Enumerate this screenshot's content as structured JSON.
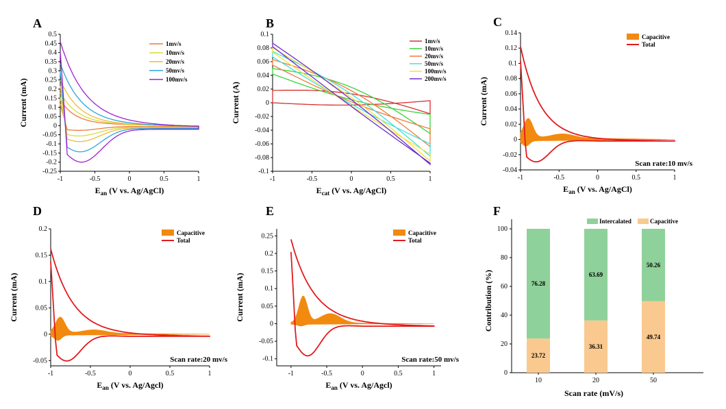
{
  "chart_data": [
    {
      "panel": "A",
      "type": "line",
      "title": "",
      "xlabel_main": "E",
      "xlabel_sub": "an",
      "xlabel_rest": " (V vs. Ag/AgCl)",
      "ylabel": "Current (mA)",
      "xlim": [
        -1,
        1
      ],
      "ylim": [
        -0.25,
        0.5
      ],
      "xticks": [
        -1,
        -0.5,
        0,
        0.5,
        1
      ],
      "yticks": [
        -0.25,
        -0.2,
        -0.15,
        -0.1,
        -0.05,
        0,
        0.05,
        0.1,
        0.15,
        0.2,
        0.25,
        0.3,
        0.35,
        0.4,
        0.45,
        0.5
      ],
      "legend_position": "top-right",
      "series": [
        {
          "name": "1mv/s",
          "color": "#ef7a3b",
          "start": 0.13,
          "upperDecay": 0.12,
          "lowerMin": -0.025,
          "lowerMinX": -0.75,
          "end": -0.005
        },
        {
          "name": "10mv/s",
          "color": "#d8dc3a",
          "start": 0.17,
          "upperDecay": 0.14,
          "lowerMin": -0.055,
          "lowerMinX": -0.74,
          "end": -0.008
        },
        {
          "name": "20mv/s",
          "color": "#f0b93a",
          "start": 0.24,
          "upperDecay": 0.15,
          "lowerMin": -0.085,
          "lowerMinX": -0.73,
          "end": -0.011
        },
        {
          "name": "50mv/s",
          "color": "#2aa5e0",
          "start": 0.33,
          "upperDecay": 0.17,
          "lowerMin": -0.14,
          "lowerMinX": -0.72,
          "end": -0.015
        },
        {
          "name": "100mv/s",
          "color": "#a020d0",
          "start": 0.45,
          "upperDecay": 0.2,
          "lowerMin": -0.195,
          "lowerMinX": -0.7,
          "end": -0.02
        }
      ]
    },
    {
      "panel": "B",
      "type": "line",
      "xlabel_main": "E",
      "xlabel_sub": "cat",
      "xlabel_rest": " (V vs. Ag/AgCl)",
      "ylabel": "Current (A)",
      "xlim": [
        -1,
        1
      ],
      "ylim": [
        -0.1,
        0.1
      ],
      "xticks": [
        -1,
        -0.5,
        0,
        0.5,
        1
      ],
      "yticks": [
        -0.1,
        -0.08,
        -0.06,
        -0.04,
        -0.02,
        0,
        0.02,
        0.04,
        0.06,
        0.08,
        0.1
      ],
      "legend_position": "top-right",
      "series": [
        {
          "name": "1mv/s",
          "color": "#d93030",
          "upStart": 0.018,
          "upEnd": -0.016,
          "loStart": 0.0,
          "loEnd": 0.003,
          "bulge": 0.012
        },
        {
          "name": "10mv/s",
          "color": "#3cd23c",
          "upStart": 0.05,
          "upEnd": -0.045,
          "loStart": 0.042,
          "loEnd": -0.017,
          "bulge": 0.02
        },
        {
          "name": "20mv/s",
          "color": "#ef7a3b",
          "upStart": 0.063,
          "upEnd": -0.064,
          "loStart": 0.055,
          "loEnd": -0.038,
          "bulge": 0.018
        },
        {
          "name": "50mv/s",
          "color": "#40e0e0",
          "upStart": 0.075,
          "upEnd": -0.078,
          "loStart": 0.067,
          "loEnd": -0.06,
          "bulge": 0.014
        },
        {
          "name": "100mv/s",
          "color": "#f0e040",
          "upStart": 0.08,
          "upEnd": -0.085,
          "loStart": 0.074,
          "loEnd": -0.075,
          "bulge": 0.01
        },
        {
          "name": "200mv/s",
          "color": "#6a2bd0",
          "upStart": 0.087,
          "upEnd": -0.09,
          "loStart": 0.082,
          "loEnd": -0.088,
          "bulge": 0.006
        }
      ]
    },
    {
      "panel": "C",
      "type": "area",
      "xlabel_main": "E",
      "xlabel_sub": "an",
      "xlabel_rest": " (V vs. Ag/AgCl)",
      "ylabel": "Current (mA)",
      "xlim": [
        -1,
        1
      ],
      "ylim": [
        -0.04,
        0.14
      ],
      "xticks": [
        -1,
        -0.5,
        0,
        0.5,
        1
      ],
      "yticks": [
        -0.04,
        -0.02,
        0,
        0.02,
        0.04,
        0.06,
        0.08,
        0.1,
        0.12,
        0.14
      ],
      "legend_position": "top-right",
      "legend": [
        "Capacitive",
        "Total"
      ],
      "annotation": "Scan rate:10 mv/s",
      "total": {
        "start": 0.122,
        "decay": 0.13,
        "lowerMin": -0.029,
        "lowerMinX": -0.8,
        "end": -0.002
      },
      "capacitive": {
        "peak": 0.025,
        "trough": -0.007,
        "center": -0.9
      }
    },
    {
      "panel": "D",
      "type": "area",
      "xlabel_main": "E",
      "xlabel_sub": "an",
      "xlabel_rest": " (V vs. Ag/Agcl)",
      "ylabel": "Current (mA)",
      "xlim": [
        -1,
        1
      ],
      "ylim": [
        -0.06,
        0.2
      ],
      "xticks": [
        -1,
        -0.5,
        0,
        0.5,
        1
      ],
      "yticks": [
        -0.05,
        0,
        0.05,
        0.1,
        0.15,
        0.2
      ],
      "legend_position": "top-right",
      "legend": [
        "Capacitive",
        "Total"
      ],
      "annotation": "Scan rate:20 mv/s",
      "total": {
        "start": 0.162,
        "decay": 0.14,
        "lowerMin": -0.05,
        "lowerMinX": -0.8,
        "end": -0.004
      },
      "capacitive": {
        "peak": 0.03,
        "trough": -0.01,
        "center": -0.88
      }
    },
    {
      "panel": "E",
      "type": "area",
      "xlabel_main": "E",
      "xlabel_sub": "an",
      "xlabel_rest": " (V vs. Ag/Agcl)",
      "ylabel": "Current (mA)",
      "xlim": [
        -1.2,
        1.1
      ],
      "ylim": [
        -0.12,
        0.27
      ],
      "xticks": [
        -1,
        -0.5,
        0,
        0.5,
        1
      ],
      "yticks": [
        -0.1,
        -0.05,
        0,
        0.05,
        0.1,
        0.15,
        0.2,
        0.25
      ],
      "legend_position": "top-right",
      "legend": [
        "Capacitive",
        "Total"
      ],
      "annotation": "Scan rate:50 mv/s",
      "total": {
        "start": 0.24,
        "decay": 0.16,
        "lowerMin": -0.09,
        "lowerMinX": -0.77,
        "end": -0.007
      },
      "capacitive": {
        "peak": 0.076,
        "trough": -0.005,
        "center": -0.83
      }
    },
    {
      "panel": "F",
      "type": "bar",
      "stacked": true,
      "xlabel": "Scan rate (mV/s)",
      "ylabel": "Contribution (%)",
      "ylim": [
        0,
        100
      ],
      "yticks": [
        0,
        20,
        40,
        60,
        80,
        100
      ],
      "categories": [
        "10",
        "20",
        "50"
      ],
      "legend_position": "top",
      "series": [
        {
          "name": "Capacitive",
          "color": "#f9c98f",
          "values": [
            23.72,
            36.31,
            49.74
          ]
        },
        {
          "name": "Intercalated",
          "color": "#8fd19a",
          "values": [
            76.28,
            63.69,
            50.26
          ]
        }
      ]
    }
  ]
}
